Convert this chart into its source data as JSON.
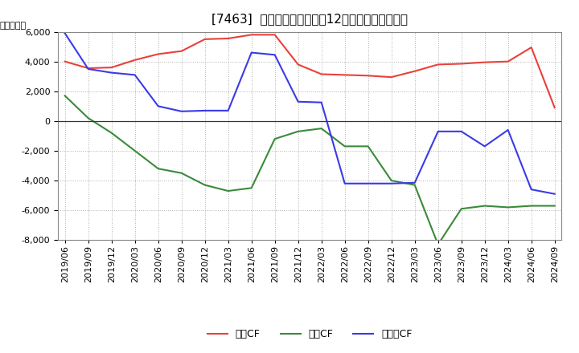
{
  "title": "[7463]  キャッシュフローの12か月移動合計の推移",
  "ylabel": "（百万円）",
  "ylim": [
    -8000,
    6000
  ],
  "yticks": [
    -8000,
    -6000,
    -4000,
    -2000,
    0,
    2000,
    4000,
    6000
  ],
  "background_color": "#ffffff",
  "plot_bg_color": "#ffffff",
  "dates": [
    "2019/06",
    "2019/09",
    "2019/12",
    "2020/03",
    "2020/06",
    "2020/09",
    "2020/12",
    "2021/03",
    "2021/06",
    "2021/09",
    "2021/12",
    "2022/03",
    "2022/06",
    "2022/09",
    "2022/12",
    "2023/03",
    "2023/06",
    "2023/09",
    "2023/12",
    "2024/03",
    "2024/06",
    "2024/09"
  ],
  "eigyo_cf": [
    4000,
    3550,
    3600,
    4100,
    4500,
    4700,
    5500,
    5550,
    5800,
    5800,
    3800,
    3150,
    3100,
    3050,
    2950,
    3350,
    3800,
    3850,
    3950,
    4000,
    4950,
    900
  ],
  "toshi_cf": [
    1700,
    200,
    -800,
    -2000,
    -3200,
    -3500,
    -4300,
    -4700,
    -4500,
    -1200,
    -700,
    -500,
    -1700,
    -1700,
    -4000,
    -4300,
    -8300,
    -5900,
    -5700,
    -5800,
    -5700,
    -5700
  ],
  "free_cf": [
    5900,
    3500,
    3250,
    3100,
    1000,
    650,
    700,
    700,
    4600,
    4450,
    1300,
    1250,
    -4200,
    -4200,
    -4200,
    -4150,
    -700,
    -700,
    -1700,
    -600,
    -4600,
    -4900
  ],
  "eigyo_color": "#e8413a",
  "toshi_color": "#3a8a3a",
  "free_color": "#3a3ae8",
  "legend_labels": [
    "営業CF",
    "投資CF",
    "フリーCF"
  ],
  "title_fontsize": 11,
  "axis_fontsize": 8,
  "legend_fontsize": 9,
  "grid_color": "#b0b0b0",
  "zero_line_color": "#333333"
}
